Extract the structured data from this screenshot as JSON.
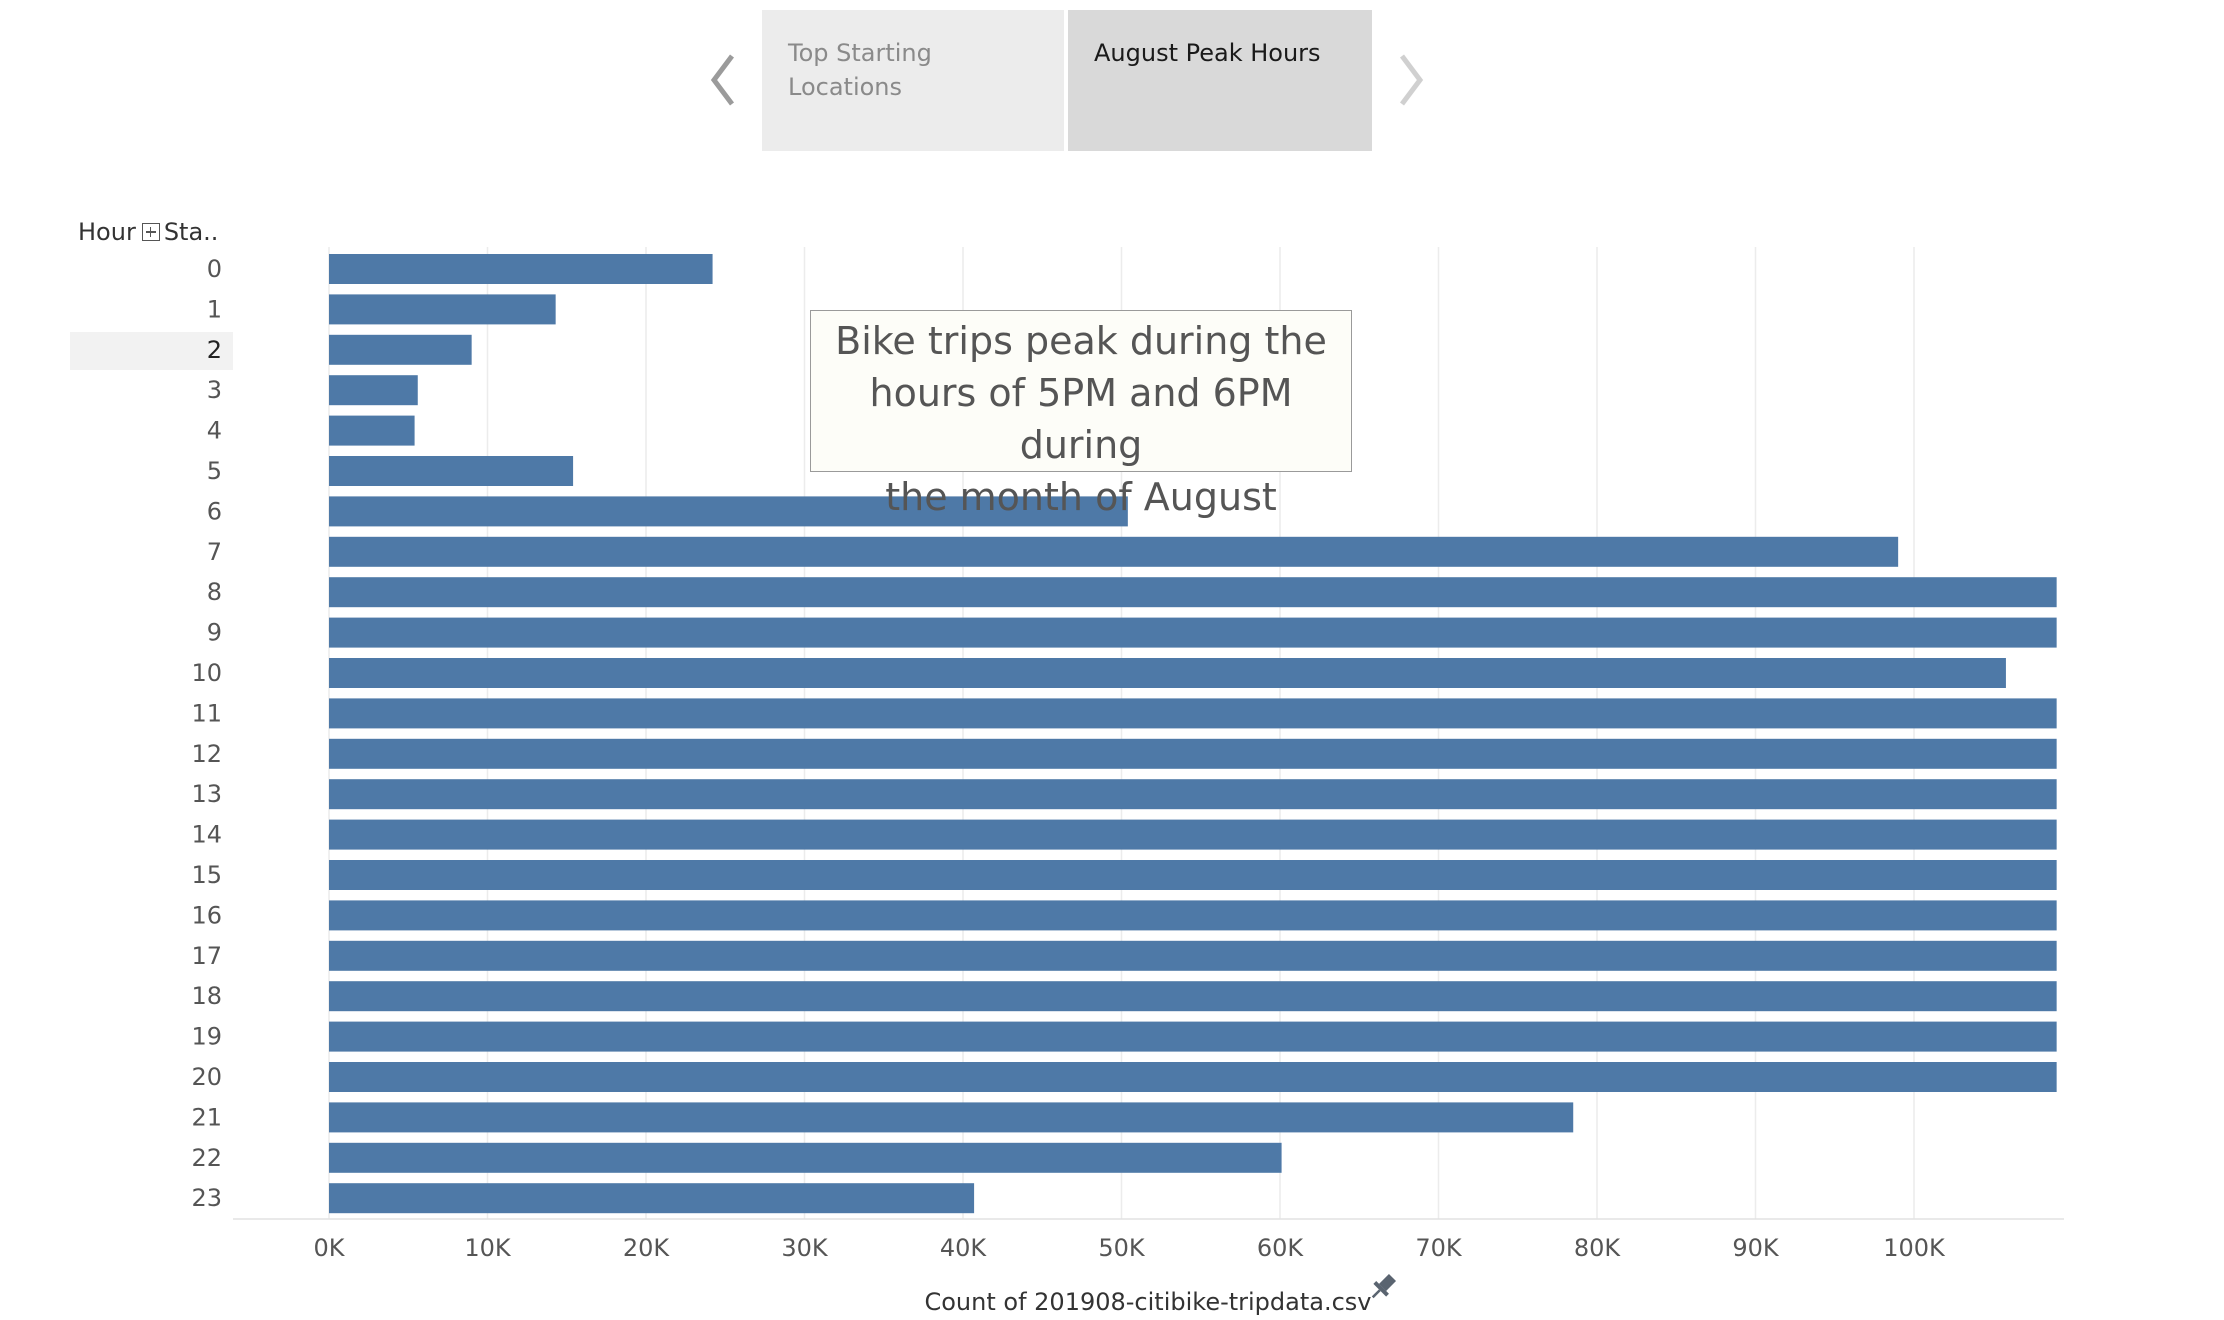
{
  "story": {
    "tabs": [
      {
        "label": "Top Starting Locations",
        "active": false
      },
      {
        "label": "August Peak Hours",
        "active": true
      }
    ]
  },
  "header": {
    "hour_label": "Hour",
    "sta_label": "Sta.."
  },
  "annotation": {
    "line1": "Bike trips peak during the",
    "line2": "hours of 5PM and 6PM during",
    "line3": "the month of  August"
  },
  "chart_data": {
    "type": "bar",
    "orientation": "horizontal",
    "categories": [
      "0",
      "1",
      "2",
      "3",
      "4",
      "5",
      "6",
      "7",
      "8",
      "9",
      "10",
      "11",
      "12",
      "13",
      "14",
      "15",
      "16",
      "17",
      "18",
      "19",
      "20",
      "21",
      "22",
      "23"
    ],
    "values": [
      24200,
      14300,
      9000,
      5600,
      5400,
      15400,
      50400,
      99000,
      109000,
      109000,
      105800,
      109000,
      109000,
      109000,
      109000,
      109000,
      109000,
      109000,
      109000,
      109000,
      109000,
      78500,
      60100,
      40700
    ],
    "xlabel": "Count of 201908-citibike-tripdata.csv",
    "xticks": [
      "0K",
      "10K",
      "20K",
      "30K",
      "40K",
      "50K",
      "60K",
      "70K",
      "80K",
      "90K",
      "100K"
    ],
    "xlim": [
      0,
      109000
    ],
    "highlighted_category": "2",
    "bar_color": "#4e79a7",
    "grid": true
  }
}
